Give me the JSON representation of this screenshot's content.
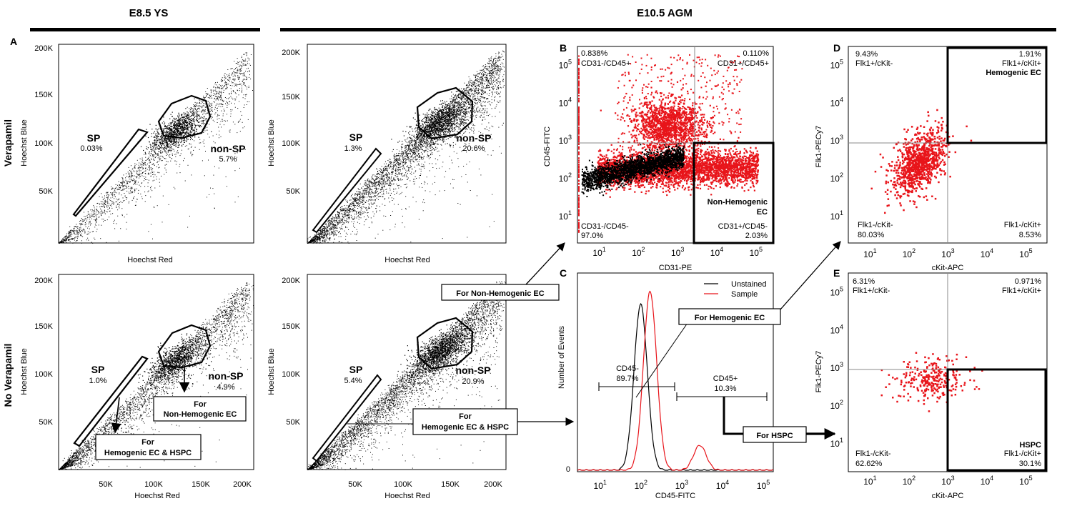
{
  "header": {
    "left_title": "E8.5 YS",
    "right_title": "E10.5 AGM"
  },
  "row_labels": {
    "top": "Verapamil",
    "bottom": "No Verapamil"
  },
  "colors": {
    "black": "#000000",
    "red": "#e8141a",
    "gray": "#888888"
  },
  "panel_letters": {
    "A": "A",
    "B": "B",
    "C": "C",
    "D": "D",
    "E": "E"
  },
  "callouts": {
    "non_hemogenic_ec_top": "For Non-Hemogenic EC",
    "hemogenic_ec": "For Hemogenic EC",
    "hemogenic_ec_hspc_line1": "For",
    "hemogenic_ec_hspc_line2": "Hemogenic EC & HSPC",
    "hspc": "For HSPC",
    "ys_non_hemo_line1": "For",
    "ys_non_hemo_line2": "Non-Hemogenic EC",
    "ys_hemo_hspc_line1": "For",
    "ys_hemo_hspc_line2": "Hemogenic EC & HSPC"
  },
  "chart_data": [
    {
      "id": "A_top",
      "type": "scatter",
      "title": "E8.5 YS Verapamil",
      "xlabel": "Hoechst Red",
      "ylabel": "Hoechst Blue",
      "xlim": [
        0,
        210000
      ],
      "ylim": [
        0,
        210000
      ],
      "yticks": [
        "50K",
        "100K",
        "150K",
        "200K"
      ],
      "xticks": [],
      "gates": [
        {
          "name": "SP",
          "percent": "0.03%"
        },
        {
          "name": "non-SP",
          "percent": "5.7%"
        }
      ]
    },
    {
      "id": "A_bottom",
      "type": "scatter",
      "title": "E8.5 YS No Verapamil",
      "xlabel": "Hoechst Red",
      "ylabel": "Hoechst Blue",
      "xlim": [
        0,
        210000
      ],
      "ylim": [
        0,
        210000
      ],
      "yticks": [
        "50K",
        "100K",
        "150K",
        "200K"
      ],
      "xticks": [
        "50K",
        "100K",
        "150K",
        "200K"
      ],
      "gates": [
        {
          "name": "SP",
          "percent": "1.0%"
        },
        {
          "name": "non-SP",
          "percent": "4.9%"
        }
      ]
    },
    {
      "id": "AGM_top",
      "type": "scatter",
      "title": "E10.5 AGM Verapamil",
      "xlabel": "Hoechst Red",
      "ylabel": "Hoechst Blue",
      "xlim": [
        0,
        210000
      ],
      "ylim": [
        0,
        210000
      ],
      "yticks": [
        "50K",
        "100K",
        "150K",
        "200K"
      ],
      "xticks": [],
      "gates": [
        {
          "name": "SP",
          "percent": "1.3%"
        },
        {
          "name": "non-SP",
          "percent": "20.6%"
        }
      ]
    },
    {
      "id": "AGM_bottom",
      "type": "scatter",
      "title": "E10.5 AGM No Verapamil",
      "xlabel": "Hoechst Red",
      "ylabel": "Hoechst Blue",
      "xlim": [
        0,
        210000
      ],
      "ylim": [
        0,
        210000
      ],
      "yticks": [
        "50K",
        "100K",
        "150K",
        "200K"
      ],
      "xticks": [
        "50K",
        "100K",
        "150K",
        "200K"
      ],
      "gates": [
        {
          "name": "SP",
          "percent": "5.4%"
        },
        {
          "name": "non-SP",
          "percent": "20.9%"
        }
      ]
    },
    {
      "id": "B",
      "type": "scatter",
      "xlabel": "CD31-PE",
      "ylabel": "CD45-FITC",
      "xscale": "log",
      "yscale": "log",
      "xlim_log10": [
        0.5,
        5.5
      ],
      "ylim_log10": [
        0.3,
        5.5
      ],
      "divider": {
        "x_log10": 3.4,
        "y_log10": 3.0
      },
      "xticks": [
        "10^1",
        "10^2",
        "10^3",
        "10^4",
        "10^5"
      ],
      "yticks": [
        "10^1",
        "10^2",
        "10^3",
        "10^4",
        "10^5"
      ],
      "quadrants": [
        {
          "name": "CD31-/CD45+",
          "percent": "0.838%",
          "position": "top-left"
        },
        {
          "name": "CD31+/CD45+",
          "percent": "0.110%",
          "position": "top-right"
        },
        {
          "name": "CD31-/CD45-",
          "percent": "97.0%",
          "position": "bottom-left"
        },
        {
          "name": "CD31+/CD45-",
          "percent": "2.03%",
          "position": "bottom-right"
        }
      ],
      "gate_label": [
        "Non-Hemogenic",
        "EC"
      ]
    },
    {
      "id": "C",
      "type": "line",
      "xlabel": "CD45-FITC",
      "ylabel": "Number of Events",
      "xscale": "log",
      "xlim_log10": [
        0.5,
        5.3
      ],
      "xticks": [
        "10^1",
        "10^2",
        "10^3",
        "10^4",
        "10^5"
      ],
      "yticks": [
        "0"
      ],
      "series": [
        {
          "name": "Unstained",
          "color": "#000000",
          "peak_log10": 2.05,
          "peak_relative": 0.93
        },
        {
          "name": "Sample",
          "color": "#e8141a",
          "peak_log10": 2.28,
          "peak_relative": 1.0,
          "secondary_peak_log10": 3.5,
          "secondary_peak_relative": 0.14
        }
      ],
      "legend": [
        "Unstained",
        "Sample"
      ],
      "gates": [
        {
          "name": "CD45-",
          "percent": "89.7%"
        },
        {
          "name": "CD45+",
          "percent": "10.3%"
        }
      ]
    },
    {
      "id": "D",
      "type": "scatter",
      "xlabel": "cKit-APC",
      "ylabel": "Flk1-PECy7",
      "xscale": "log",
      "yscale": "log",
      "xlim_log10": [
        0.5,
        5.6
      ],
      "ylim_log10": [
        0.3,
        5.5
      ],
      "divider": {
        "x_log10": 3.0,
        "y_log10": 3.0
      },
      "xticks": [
        "10^1",
        "10^2",
        "10^3",
        "10^4",
        "10^5"
      ],
      "yticks": [
        "10^1",
        "10^2",
        "10^3",
        "10^4",
        "10^5"
      ],
      "quadrants": [
        {
          "name": "Flk1+/cKit-",
          "percent": "9.43%",
          "position": "top-left"
        },
        {
          "name": "Flk1+/cKit+",
          "percent": "1.91%",
          "position": "top-right"
        },
        {
          "name": "Flk1-/cKit-",
          "percent": "80.03%",
          "position": "bottom-left"
        },
        {
          "name": "Flk1-/cKit+",
          "percent": "8.53%",
          "position": "bottom-right"
        }
      ],
      "gate_label": [
        "Hemogenic EC"
      ]
    },
    {
      "id": "E",
      "type": "scatter",
      "xlabel": "cKit-APC",
      "ylabel": "Flk1-PECy7",
      "xscale": "log",
      "yscale": "log",
      "xlim_log10": [
        0.5,
        5.6
      ],
      "ylim_log10": [
        0.3,
        5.5
      ],
      "divider": {
        "x_log10": 3.0,
        "y_log10": 3.0
      },
      "xticks": [
        "10^1",
        "10^2",
        "10^3",
        "10^4",
        "10^5"
      ],
      "yticks": [
        "10^1",
        "10^2",
        "10^3",
        "10^4",
        "10^5"
      ],
      "quadrants": [
        {
          "name": "Flk1+/cKit-",
          "percent": "6.31%",
          "position": "top-left"
        },
        {
          "name": "Flk1+/cKit+",
          "percent": "0.971%",
          "position": "top-right"
        },
        {
          "name": "Flk1-/cKit-",
          "percent": "62.62%",
          "position": "bottom-left"
        },
        {
          "name": "Flk1-/cKit+",
          "percent": "30.1%",
          "position": "bottom-right"
        }
      ],
      "gate_label": [
        "HSPC"
      ]
    }
  ]
}
